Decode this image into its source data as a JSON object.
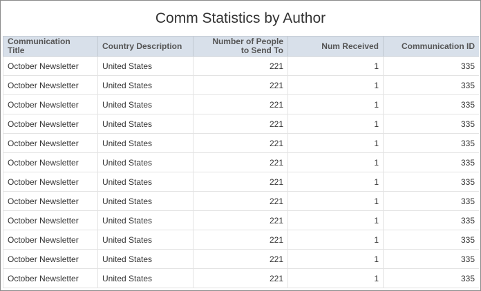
{
  "title": "Comm Statistics by Author",
  "table": {
    "header": [
      "Communication Title",
      "Country Description",
      "Number of People to Send To",
      "Num Received",
      "Communication ID"
    ],
    "rows": [
      [
        "October Newsletter",
        "United States",
        221,
        1,
        335
      ],
      [
        "October Newsletter",
        "United States",
        221,
        1,
        335
      ],
      [
        "October Newsletter",
        "United States",
        221,
        1,
        335
      ],
      [
        "October Newsletter",
        "United States",
        221,
        1,
        335
      ],
      [
        "October Newsletter",
        "United States",
        221,
        1,
        335
      ],
      [
        "October Newsletter",
        "United States",
        221,
        1,
        335
      ],
      [
        "October Newsletter",
        "United States",
        221,
        1,
        335
      ],
      [
        "October Newsletter",
        "United States",
        221,
        1,
        335
      ],
      [
        "October Newsletter",
        "United States",
        221,
        1,
        335
      ],
      [
        "October Newsletter",
        "United States",
        221,
        1,
        335
      ],
      [
        "October Newsletter",
        "United States",
        221,
        1,
        335
      ],
      [
        "October Newsletter",
        "United States",
        221,
        1,
        335
      ]
    ]
  }
}
